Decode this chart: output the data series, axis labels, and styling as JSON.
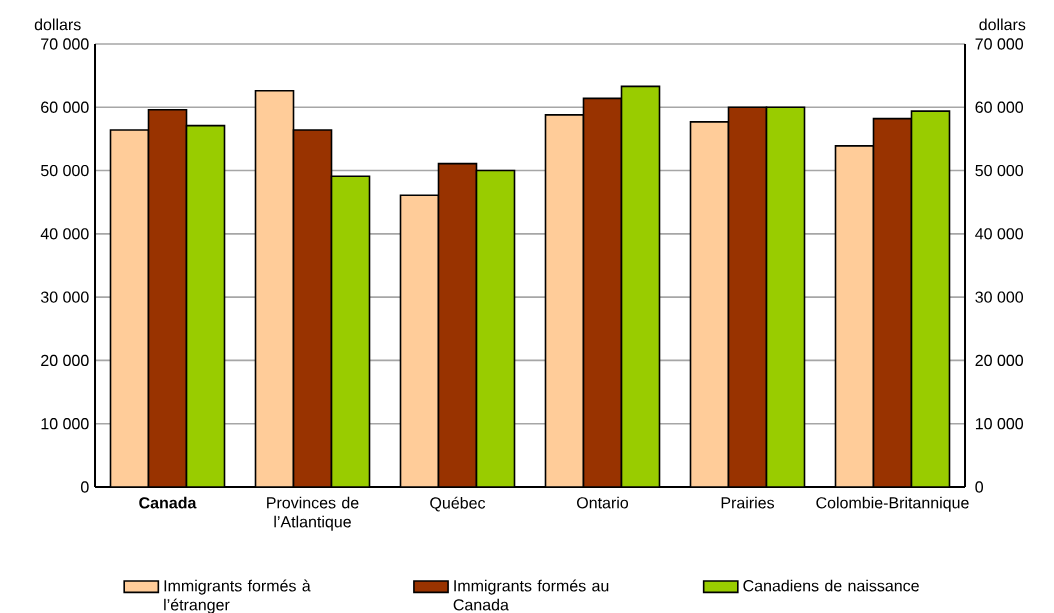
{
  "chart_data": {
    "type": "bar",
    "ylabel": "dollars",
    "y2label": "dollars",
    "categories": [
      "Canada",
      "Provinces de l’Atlantique",
      "Québec",
      "Ontario",
      "Prairies",
      "Colombie-Britannique"
    ],
    "series": [
      {
        "name": "Immigrants formés à l’étranger",
        "color": "#ffcc99",
        "values": [
          56400,
          62600,
          46100,
          58800,
          57700,
          53900
        ]
      },
      {
        "name": "Immigrants formés au Canada",
        "color": "#993300",
        "values": [
          59600,
          56400,
          51100,
          61400,
          60000,
          58200
        ]
      },
      {
        "name": "Canadiens de naissance",
        "color": "#99cc00",
        "values": [
          57100,
          49100,
          50000,
          63300,
          60000,
          59400
        ]
      }
    ],
    "ylim": [
      0,
      70000
    ],
    "yticks": [
      {
        "value": 0,
        "label": "0"
      },
      {
        "value": 10000,
        "label": "10 000"
      },
      {
        "value": 20000,
        "label": "20 000"
      },
      {
        "value": 30000,
        "label": "30 000"
      },
      {
        "value": 40000,
        "label": "40 000"
      },
      {
        "value": 50000,
        "label": "50 000"
      },
      {
        "value": 60000,
        "label": "60 000"
      },
      {
        "value": 70000,
        "label": "70 000"
      }
    ],
    "y2lim": [
      0,
      70000
    ],
    "y2ticks": [
      {
        "value": 0,
        "label": "0"
      },
      {
        "value": 10000,
        "label": "10 000"
      },
      {
        "value": 20000,
        "label": "20 000"
      },
      {
        "value": 30000,
        "label": "30 000"
      },
      {
        "value": 40000,
        "label": "40 000"
      },
      {
        "value": 50000,
        "label": "50 000"
      },
      {
        "value": 60000,
        "label": "60 000"
      },
      {
        "value": 70000,
        "label": "70 000"
      }
    ],
    "grid": "y",
    "legend": "bottom"
  }
}
